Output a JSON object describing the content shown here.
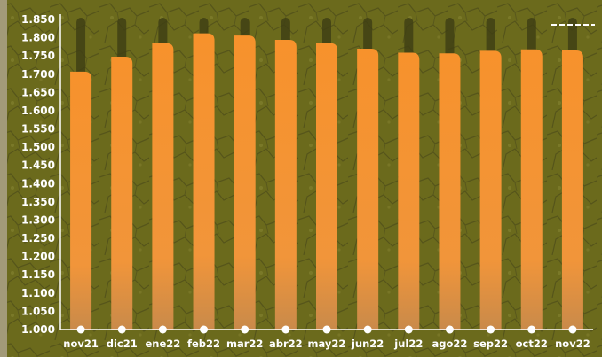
{
  "chart_data": {
    "type": "bar",
    "categories": [
      "nov21",
      "dic21",
      "ene22",
      "feb22",
      "mar22",
      "abr22",
      "may22",
      "jun22",
      "jul22",
      "ago22",
      "sep22",
      "oct22",
      "nov22"
    ],
    "values": [
      1707,
      1748,
      1785,
      1812,
      1806,
      1794,
      1785,
      1770,
      1759,
      1757,
      1764,
      1768,
      1765
    ],
    "ylim": [
      1000,
      1850
    ],
    "yticks": [
      "1.000",
      "1.050",
      "1.100",
      "1.150",
      "1.200",
      "1.250",
      "1.300",
      "1.350",
      "1.400",
      "1.450",
      "1.500",
      "1.550",
      "1.600",
      "1.650",
      "1.700",
      "1.750",
      "1.800",
      "1.850"
    ],
    "title": "",
    "xlabel": "",
    "ylabel": "",
    "grid": false,
    "legend": "top-right",
    "colors": {
      "background": "#6b6a1c",
      "bar": "#f5922e",
      "bar_track": "#3f3f14",
      "axis": "#ffffff",
      "text": "#ffffff"
    }
  }
}
